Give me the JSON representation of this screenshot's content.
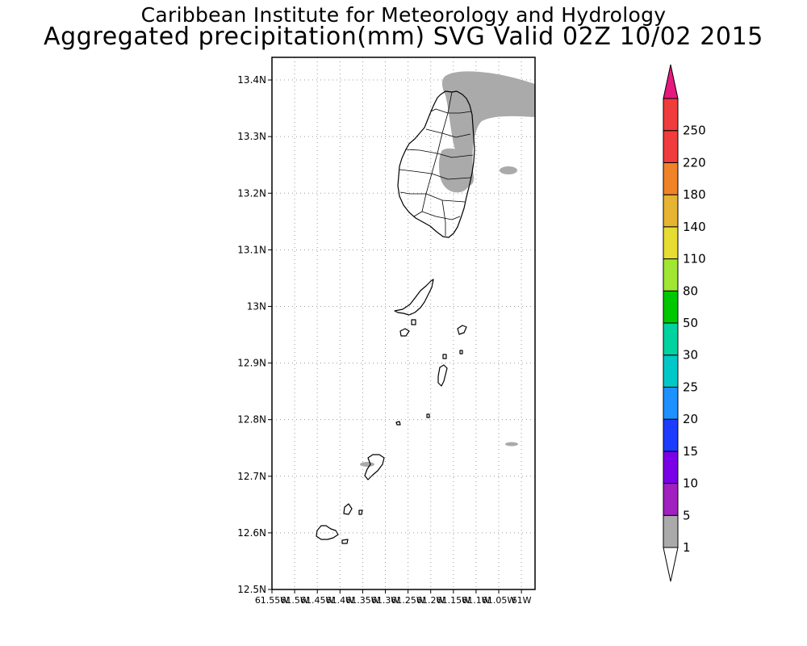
{
  "header": {
    "title_line1": "Caribbean Institute for Meteorology and Hydrology",
    "title_line2": "Aggregated precipitation(mm) SVG Valid 02Z 10/02 2015"
  },
  "map": {
    "lat_labels": [
      "13.4N",
      "13.3N",
      "13.2N",
      "13.1N",
      "13N",
      "12.9N",
      "12.8N",
      "12.7N",
      "12.6N",
      "12.5N"
    ],
    "lat_values": [
      13.4,
      13.3,
      13.2,
      13.1,
      13.0,
      12.9,
      12.8,
      12.7,
      12.6,
      12.5
    ],
    "lon_labels": [
      "61.55W",
      "61.5W",
      "61.45W",
      "61.4W",
      "61.35W",
      "61.3W",
      "61.25W",
      "61.2W",
      "61.15W",
      "61.1W",
      "61.05W",
      "61W"
    ],
    "lon_values": [
      -61.55,
      -61.5,
      -61.45,
      -61.4,
      -61.35,
      -61.3,
      -61.25,
      -61.2,
      -61.15,
      -61.1,
      -61.05,
      -61.0
    ],
    "lat_range": [
      12.5,
      13.44
    ],
    "lon_range": [
      -61.55,
      -60.97
    ],
    "gridlines": true,
    "land_outline_color": "#000000",
    "rain_fill_color": "#aaaaaa"
  },
  "legend": {
    "labels": [
      "1",
      "5",
      "10",
      "15",
      "20",
      "25",
      "30",
      "50",
      "80",
      "110",
      "140",
      "180",
      "220",
      "250"
    ],
    "colors": [
      "#aaaaaa",
      "#a020c0",
      "#7a00e8",
      "#1e3cff",
      "#1e90ff",
      "#00c8c8",
      "#00d2a0",
      "#00c800",
      "#a0e632",
      "#e6dc32",
      "#e6b432",
      "#f08228",
      "#f03c3c",
      "#e6197d"
    ]
  }
}
